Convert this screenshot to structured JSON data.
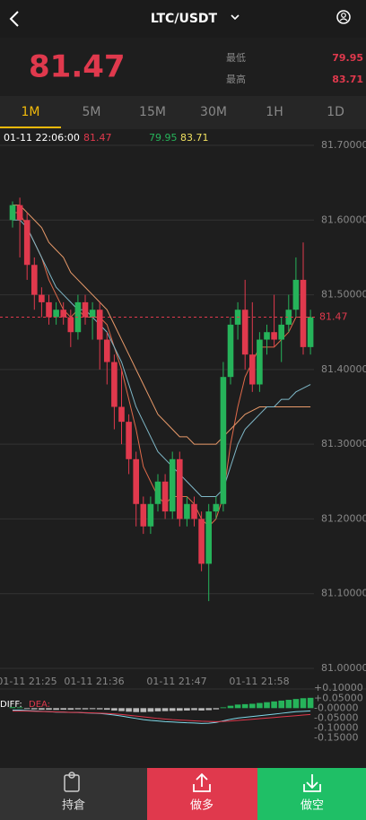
{
  "header": {
    "pair": "LTC/USDT"
  },
  "price": {
    "last": "81.47",
    "low_label": "最低",
    "low": "79.95",
    "high_label": "最高",
    "high": "83.71"
  },
  "tabs": {
    "items": [
      "1M",
      "5M",
      "15M",
      "30M",
      "1H",
      "1D"
    ],
    "active": 0
  },
  "info": {
    "time": "01-11 22:06:00",
    "a": "81.47",
    "b": "79.95",
    "c": "83.71"
  },
  "chart": {
    "ylim": [
      81.0,
      81.7
    ],
    "yticks": [
      {
        "value": 81.7,
        "label": "81.70000"
      },
      {
        "value": 81.6,
        "label": "81.60000"
      },
      {
        "value": 81.5,
        "label": "81.50000"
      },
      {
        "value": 81.4,
        "label": "81.40000"
      },
      {
        "value": 81.3,
        "label": "81.30000"
      },
      {
        "value": 81.2,
        "label": "81.20000"
      },
      {
        "value": 81.1,
        "label": "81.10000"
      },
      {
        "value": 81.0,
        "label": "81.00000"
      }
    ],
    "x_labels": [
      "01-11 21:25",
      "01-11 21:36",
      "01-11 21:47",
      "01-11 21:58"
    ],
    "current_price": 81.47,
    "current_label": "81.47",
    "up_color": "#26b35a",
    "down_color": "#e0394d",
    "candles": [
      {
        "open": 81.6,
        "high": 81.625,
        "low": 81.59,
        "close": 81.62
      },
      {
        "open": 81.62,
        "high": 81.63,
        "low": 81.55,
        "close": 81.6
      },
      {
        "open": 81.6,
        "high": 81.61,
        "low": 81.52,
        "close": 81.54
      },
      {
        "open": 81.54,
        "high": 81.55,
        "low": 81.48,
        "close": 81.5
      },
      {
        "open": 81.5,
        "high": 81.51,
        "low": 81.47,
        "close": 81.49
      },
      {
        "open": 81.49,
        "high": 81.5,
        "low": 81.46,
        "close": 81.47
      },
      {
        "open": 81.47,
        "high": 81.49,
        "low": 81.46,
        "close": 81.48
      },
      {
        "open": 81.48,
        "high": 81.49,
        "low": 81.46,
        "close": 81.47
      },
      {
        "open": 81.47,
        "high": 81.48,
        "low": 81.43,
        "close": 81.45
      },
      {
        "open": 81.45,
        "high": 81.5,
        "low": 81.44,
        "close": 81.49
      },
      {
        "open": 81.49,
        "high": 81.5,
        "low": 81.46,
        "close": 81.47
      },
      {
        "open": 81.47,
        "high": 81.49,
        "low": 81.44,
        "close": 81.48
      },
      {
        "open": 81.48,
        "high": 81.49,
        "low": 81.4,
        "close": 81.44
      },
      {
        "open": 81.44,
        "high": 81.45,
        "low": 81.38,
        "close": 81.41
      },
      {
        "open": 81.41,
        "high": 81.42,
        "low": 81.32,
        "close": 81.35
      },
      {
        "open": 81.35,
        "high": 81.4,
        "low": 81.3,
        "close": 81.33
      },
      {
        "open": 81.33,
        "high": 81.34,
        "low": 81.26,
        "close": 81.28
      },
      {
        "open": 81.28,
        "high": 81.29,
        "low": 81.19,
        "close": 81.22
      },
      {
        "open": 81.22,
        "high": 81.23,
        "low": 81.18,
        "close": 81.19
      },
      {
        "open": 81.19,
        "high": 81.23,
        "low": 81.18,
        "close": 81.22
      },
      {
        "open": 81.22,
        "high": 81.26,
        "low": 81.21,
        "close": 81.25
      },
      {
        "open": 81.25,
        "high": 81.26,
        "low": 81.2,
        "close": 81.21
      },
      {
        "open": 81.21,
        "high": 81.29,
        "low": 81.2,
        "close": 81.28
      },
      {
        "open": 81.28,
        "high": 81.29,
        "low": 81.19,
        "close": 81.2
      },
      {
        "open": 81.2,
        "high": 81.23,
        "low": 81.19,
        "close": 81.22
      },
      {
        "open": 81.22,
        "high": 81.23,
        "low": 81.19,
        "close": 81.2
      },
      {
        "open": 81.2,
        "high": 81.21,
        "low": 81.13,
        "close": 81.14
      },
      {
        "open": 81.14,
        "high": 81.22,
        "low": 81.09,
        "close": 81.21
      },
      {
        "open": 81.21,
        "high": 81.23,
        "low": 81.2,
        "close": 81.22
      },
      {
        "open": 81.22,
        "high": 81.41,
        "low": 81.21,
        "close": 81.39
      },
      {
        "open": 81.39,
        "high": 81.47,
        "low": 81.38,
        "close": 81.46
      },
      {
        "open": 81.46,
        "high": 81.49,
        "low": 81.44,
        "close": 81.48
      },
      {
        "open": 81.48,
        "high": 81.52,
        "low": 81.4,
        "close": 81.42
      },
      {
        "open": 81.42,
        "high": 81.49,
        "low": 81.37,
        "close": 81.38
      },
      {
        "open": 81.38,
        "high": 81.45,
        "low": 81.37,
        "close": 81.44
      },
      {
        "open": 81.44,
        "high": 81.46,
        "low": 81.42,
        "close": 81.45
      },
      {
        "open": 81.45,
        "high": 81.5,
        "low": 81.43,
        "close": 81.44
      },
      {
        "open": 81.44,
        "high": 81.47,
        "low": 81.41,
        "close": 81.46
      },
      {
        "open": 81.46,
        "high": 81.5,
        "low": 81.45,
        "close": 81.48
      },
      {
        "open": 81.48,
        "high": 81.55,
        "low": 81.47,
        "close": 81.52
      },
      {
        "open": 81.52,
        "high": 81.57,
        "low": 81.42,
        "close": 81.43
      },
      {
        "open": 81.43,
        "high": 81.48,
        "low": 81.42,
        "close": 81.47
      }
    ],
    "lines": [
      {
        "color": "#e06a4a",
        "values": [
          81.61,
          81.61,
          81.59,
          81.57,
          81.55,
          81.52,
          81.5,
          81.48,
          81.47,
          81.48,
          81.47,
          81.47,
          81.47,
          81.46,
          81.43,
          81.4,
          81.36,
          81.32,
          81.27,
          81.25,
          81.23,
          81.22,
          81.23,
          81.23,
          81.23,
          81.22,
          81.2,
          81.19,
          81.2,
          81.23,
          81.3,
          81.35,
          81.39,
          81.41,
          81.43,
          81.43,
          81.43,
          81.44,
          81.45,
          81.47,
          81.47,
          81.47
        ]
      },
      {
        "color": "#e89a6a",
        "values": [
          81.62,
          81.62,
          81.61,
          81.6,
          81.59,
          81.57,
          81.56,
          81.55,
          81.53,
          81.52,
          81.51,
          81.5,
          81.49,
          81.48,
          81.46,
          81.44,
          81.42,
          81.4,
          81.38,
          81.36,
          81.34,
          81.33,
          81.32,
          81.31,
          81.31,
          81.3,
          81.3,
          81.3,
          81.3,
          81.31,
          81.32,
          81.33,
          81.34,
          81.345,
          81.35,
          81.35,
          81.35,
          81.35,
          81.35,
          81.35,
          81.35,
          81.35
        ]
      },
      {
        "color": "#7fb8c8",
        "values": [
          81.6,
          81.6,
          81.59,
          81.57,
          81.55,
          81.53,
          81.51,
          81.5,
          81.49,
          81.48,
          81.48,
          81.47,
          81.46,
          81.45,
          81.43,
          81.41,
          81.38,
          81.35,
          81.33,
          81.31,
          81.29,
          81.28,
          81.27,
          81.26,
          81.25,
          81.24,
          81.23,
          81.23,
          81.23,
          81.24,
          81.27,
          81.3,
          81.32,
          81.33,
          81.34,
          81.35,
          81.35,
          81.36,
          81.36,
          81.37,
          81.375,
          81.38
        ]
      }
    ]
  },
  "macd": {
    "label_dif": "DIFF:",
    "label_dea": "DEA:",
    "ylim": [
      -0.175,
      0.11
    ],
    "yticks": [
      {
        "value": 0.1,
        "label": "+0.10000"
      },
      {
        "value": 0.05,
        "label": "+0.05000"
      },
      {
        "value": 0,
        "label": "-0.00000"
      },
      {
        "value": -0.05,
        "label": "-0.05000"
      },
      {
        "value": -0.1,
        "label": "-0.10000"
      },
      {
        "value": -0.15,
        "label": "-0.15000"
      }
    ],
    "hist": [
      0.005,
      0.004,
      -0.004,
      -0.006,
      -0.008,
      -0.008,
      -0.009,
      -0.008,
      -0.008,
      -0.006,
      -0.006,
      -0.005,
      -0.006,
      -0.008,
      -0.012,
      -0.015,
      -0.018,
      -0.02,
      -0.02,
      -0.018,
      -0.016,
      -0.015,
      -0.014,
      -0.013,
      -0.012,
      -0.01,
      -0.012,
      -0.01,
      -0.006,
      0.004,
      0.012,
      0.018,
      0.02,
      0.022,
      0.026,
      0.03,
      0.034,
      0.038,
      0.042,
      0.046,
      0.05,
      0.052
    ],
    "dif": [
      -0.01,
      -0.01,
      -0.012,
      -0.014,
      -0.016,
      -0.018,
      -0.02,
      -0.02,
      -0.022,
      -0.022,
      -0.024,
      -0.025,
      -0.027,
      -0.03,
      -0.035,
      -0.04,
      -0.046,
      -0.052,
      -0.058,
      -0.062,
      -0.065,
      -0.068,
      -0.07,
      -0.072,
      -0.074,
      -0.075,
      -0.077,
      -0.076,
      -0.072,
      -0.064,
      -0.056,
      -0.05,
      -0.046,
      -0.042,
      -0.038,
      -0.034,
      -0.03,
      -0.026,
      -0.022,
      -0.018,
      -0.016,
      -0.014
    ],
    "dea": [
      -0.015,
      -0.015,
      -0.015,
      -0.016,
      -0.017,
      -0.018,
      -0.019,
      -0.02,
      -0.021,
      -0.022,
      -0.023,
      -0.024,
      -0.025,
      -0.027,
      -0.029,
      -0.032,
      -0.036,
      -0.04,
      -0.044,
      -0.048,
      -0.052,
      -0.055,
      -0.058,
      -0.06,
      -0.062,
      -0.064,
      -0.066,
      -0.067,
      -0.068,
      -0.067,
      -0.065,
      -0.062,
      -0.059,
      -0.056,
      -0.053,
      -0.05,
      -0.047,
      -0.044,
      -0.041,
      -0.038,
      -0.035,
      -0.032
    ]
  },
  "footer": {
    "position": "持倉",
    "long": "做多",
    "short": "做空"
  }
}
